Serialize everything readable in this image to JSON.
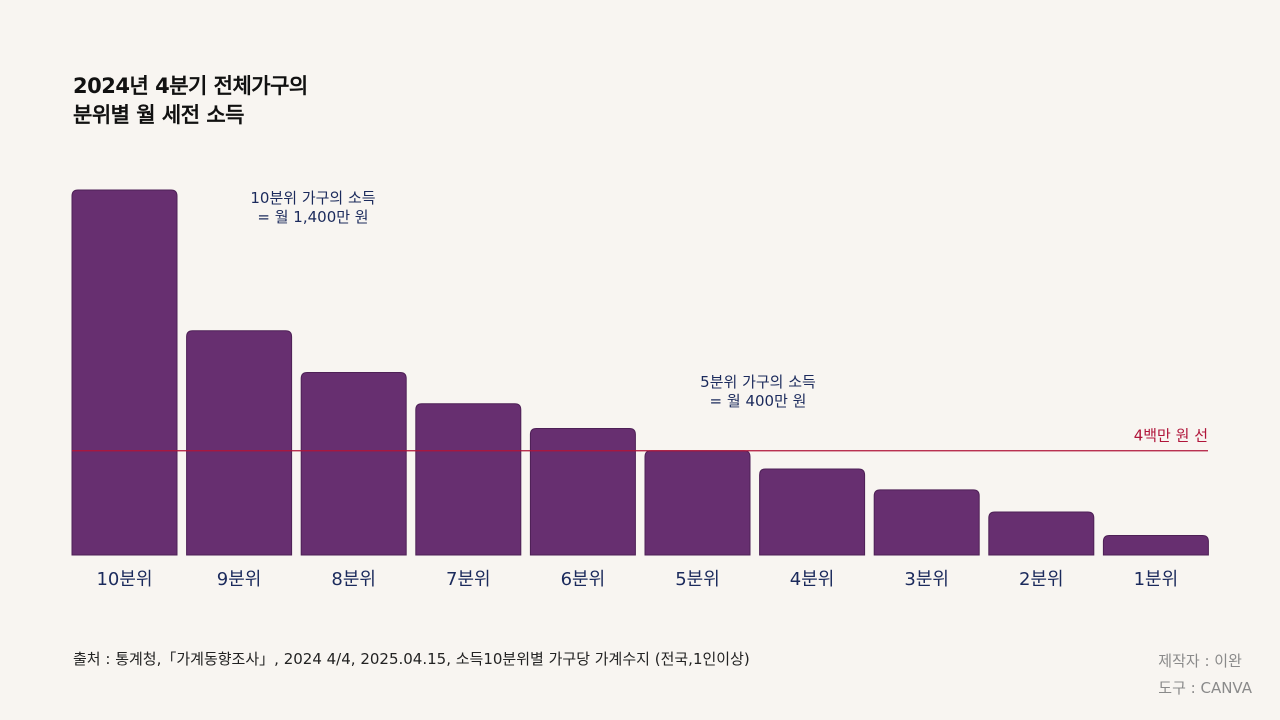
{
  "title": {
    "line1": "2024년 4분기 전체가구의",
    "line2": "분위별 월 세전 소득"
  },
  "chart_data": {
    "type": "bar",
    "categories": [
      "10분위",
      "9분위",
      "8분위",
      "7분위",
      "6분위",
      "5분위",
      "4분위",
      "3분위",
      "2분위",
      "1분위"
    ],
    "values": [
      1400,
      860,
      700,
      580,
      485,
      400,
      330,
      250,
      165,
      75
    ],
    "ylim": [
      0,
      1400
    ],
    "bar_color": "#672f70",
    "label_color": "#1b2a5c",
    "reference_line": {
      "value": 400,
      "label": "4백만 원 선",
      "color": "#b0153a"
    },
    "annotations": [
      {
        "target": "10분위",
        "line1": "10분위 가구의 소득",
        "line2": "= 월 1,400만 원"
      },
      {
        "target": "5분위",
        "line1": "5분위 가구의 소득",
        "line2": "= 월 400만 원"
      }
    ]
  },
  "footer": {
    "source": "출처 : 통계청,「가계동향조사」, 2024 4/4, 2025.04.15, 소득10분위별 가구당 가계수지 (전국,1인이상)",
    "maker": "제작자 : 이완",
    "tool": "도구 : CANVA"
  }
}
